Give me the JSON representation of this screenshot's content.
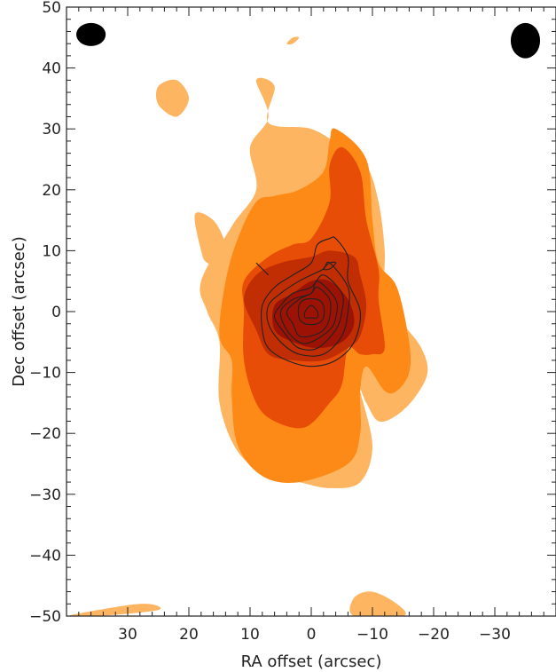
{
  "chart_data": {
    "type": "heatmap",
    "title": "",
    "xlabel": "RA offset (arcsec)",
    "ylabel": "Dec offset (arcsec)",
    "xlim": [
      40,
      -40
    ],
    "ylim": [
      -50,
      50
    ],
    "x_reversed": true,
    "x_ticks": [
      30,
      20,
      10,
      0,
      -10,
      -20,
      -30
    ],
    "x_tick_labels": [
      "30",
      "20",
      "10",
      "0",
      "−10",
      "−20",
      "−30"
    ],
    "y_ticks": [
      -50,
      -40,
      -30,
      -20,
      -10,
      0,
      10,
      20,
      30,
      40,
      50
    ],
    "y_tick_labels": [
      "−50",
      "−40",
      "−30",
      "−20",
      "−10",
      "0",
      "10",
      "20",
      "30",
      "40",
      "50"
    ],
    "grid": false,
    "filled_contour_levels": [
      {
        "level": 1,
        "color": "#fdb562",
        "regions": [
          [
            [
              9,
              38
            ],
            [
              6,
              37
            ],
            [
              7,
              31
            ],
            [
              0,
              30
            ],
            [
              -5,
              27
            ],
            [
              -9,
              24
            ],
            [
              -11,
              18
            ],
            [
              -12,
              10
            ],
            [
              -12,
              2
            ],
            [
              -15,
              -2
            ],
            [
              -18,
              -6
            ],
            [
              -19,
              -10
            ],
            [
              -17,
              -14
            ],
            [
              -14,
              -17
            ],
            [
              -11,
              -18
            ],
            [
              -9,
              -15
            ],
            [
              -8,
              -13
            ],
            [
              -10,
              -22
            ],
            [
              -8,
              -28
            ],
            [
              -3,
              -29
            ],
            [
              2,
              -28
            ],
            [
              7,
              -27
            ],
            [
              12,
              -23
            ],
            [
              15,
              -15
            ],
            [
              15,
              -5
            ],
            [
              17,
              0
            ],
            [
              18,
              5
            ],
            [
              13,
              14
            ],
            [
              9,
              20
            ],
            [
              10,
              27
            ],
            [
              7,
              32
            ]
          ],
          [
            [
              22,
              38
            ],
            [
              25,
              37
            ],
            [
              25,
              34
            ],
            [
              22,
              32
            ],
            [
              20,
              35
            ]
          ],
          [
            [
              16,
              15
            ],
            [
              19,
              16
            ],
            [
              18,
              10
            ],
            [
              17,
              8
            ],
            [
              14,
              7
            ],
            [
              14,
              11
            ]
          ],
          [
            [
              3,
              45
            ],
            [
              4,
              44
            ],
            [
              3,
              44
            ],
            [
              2,
              45
            ]
          ],
          [
            [
              40,
              -50
            ],
            [
              28,
              -48
            ],
            [
              25,
              -49
            ],
            [
              35,
              -50
            ]
          ],
          [
            [
              -7,
              -47
            ],
            [
              -10,
              -46
            ],
            [
              -14,
              -48
            ],
            [
              -15,
              -50
            ],
            [
              -7,
              -50
            ]
          ]
        ]
      },
      {
        "level": 2,
        "color": "#fd8a17",
        "regions": [
          [
            [
              -4,
              30
            ],
            [
              -9,
              25
            ],
            [
              -10,
              15
            ],
            [
              -11,
              8
            ],
            [
              -14,
              4
            ],
            [
              -16,
              -5
            ],
            [
              -16,
              -10
            ],
            [
              -14,
              -13
            ],
            [
              -12,
              -13
            ],
            [
              -9,
              -9
            ],
            [
              -8,
              -13
            ],
            [
              -8,
              -20
            ],
            [
              -6,
              -25
            ],
            [
              2,
              -28
            ],
            [
              8,
              -27
            ],
            [
              12,
              -22
            ],
            [
              13,
              -14
            ],
            [
              13,
              -8
            ],
            [
              15,
              -4
            ],
            [
              14,
              5
            ],
            [
              12,
              12
            ],
            [
              9,
              18
            ],
            [
              6,
              19
            ],
            [
              2,
              20
            ],
            [
              -2,
              23
            ],
            [
              -3,
              28
            ]
          ]
        ]
      },
      {
        "level": 3,
        "color": "#e84d08",
        "regions": [
          [
            [
              -5,
              27
            ],
            [
              -8,
              23
            ],
            [
              -9,
              15
            ],
            [
              -11,
              7
            ],
            [
              -11,
              2
            ],
            [
              -12,
              -6
            ],
            [
              -10,
              -7
            ],
            [
              -8,
              -7
            ],
            [
              -6,
              -6
            ],
            [
              -5,
              -12
            ],
            [
              -3,
              -15
            ],
            [
              1,
              -19
            ],
            [
              6,
              -18
            ],
            [
              9,
              -15
            ],
            [
              11,
              -8
            ],
            [
              11,
              0
            ],
            [
              11,
              5
            ],
            [
              7,
              9
            ],
            [
              3,
              11
            ],
            [
              0,
              12
            ],
            [
              -3,
              18
            ],
            [
              -3,
              24
            ]
          ]
        ]
      },
      {
        "level": 4,
        "color": "#c12e03",
        "regions": [
          [
            [
              -3,
              10
            ],
            [
              -7,
              9
            ],
            [
              -8,
              6
            ],
            [
              -9,
              1
            ],
            [
              -8,
              -4
            ],
            [
              -6,
              -6
            ],
            [
              -2,
              -8
            ],
            [
              3,
              -8
            ],
            [
              7,
              -7
            ],
            [
              9,
              -3
            ],
            [
              11,
              2
            ],
            [
              9,
              6
            ],
            [
              5,
              8
            ],
            [
              0,
              9
            ]
          ]
        ]
      },
      {
        "level": 5,
        "color": "#9c1204",
        "regions": [
          [
            [
              -3,
              5
            ],
            [
              -6,
              2
            ],
            [
              -7,
              -2
            ],
            [
              -5,
              -5
            ],
            [
              -1,
              -6
            ],
            [
              3,
              -5
            ],
            [
              6,
              -3
            ],
            [
              6,
              1
            ],
            [
              3,
              3
            ],
            [
              0,
              5
            ]
          ]
        ]
      }
    ],
    "line_contours": {
      "color": "#222222",
      "paths": [
        [
          [
            -4,
            12
          ],
          [
            -6,
            9
          ],
          [
            -6,
            5
          ],
          [
            -8,
            0
          ],
          [
            -7,
            -5
          ],
          [
            -4,
            -8
          ],
          [
            0,
            -9
          ],
          [
            4,
            -8
          ],
          [
            7,
            -6
          ],
          [
            8,
            -3
          ],
          [
            8,
            1
          ],
          [
            6,
            4
          ],
          [
            3,
            6
          ],
          [
            0,
            8
          ],
          [
            -1,
            11
          ],
          [
            -3,
            12
          ]
        ],
        [
          [
            -3,
            8
          ],
          [
            -6,
            4
          ],
          [
            -6,
            0
          ],
          [
            -5,
            -4
          ],
          [
            -2,
            -7
          ],
          [
            2,
            -7
          ],
          [
            5,
            -5
          ],
          [
            7,
            -2
          ],
          [
            7,
            1
          ],
          [
            5,
            3
          ],
          [
            2,
            5
          ],
          [
            0,
            6
          ],
          [
            -2,
            7
          ]
        ],
        [
          [
            -2,
            6
          ],
          [
            -5,
            3
          ],
          [
            -5,
            0
          ],
          [
            -4,
            -3
          ],
          [
            -1,
            -6
          ],
          [
            2,
            -6
          ],
          [
            4,
            -4
          ],
          [
            6,
            -1
          ],
          [
            5,
            1
          ],
          [
            3,
            3
          ],
          [
            0,
            4
          ]
        ],
        [
          [
            -1,
            5
          ],
          [
            -4,
            2
          ],
          [
            -4,
            -1
          ],
          [
            -3,
            -3
          ],
          [
            0,
            -5
          ],
          [
            2,
            -5
          ],
          [
            4,
            -3
          ],
          [
            5,
            0
          ],
          [
            3,
            2
          ],
          [
            0,
            3
          ]
        ],
        [
          [
            -1,
            4
          ],
          [
            -3,
            2
          ],
          [
            -3,
            -1
          ],
          [
            -2,
            -3
          ],
          [
            0,
            -4
          ],
          [
            2,
            -4
          ],
          [
            3,
            -2
          ],
          [
            4,
            0
          ],
          [
            2,
            2
          ],
          [
            0,
            3
          ]
        ],
        [
          [
            -1,
            2
          ],
          [
            -2,
            1
          ],
          [
            -2,
            -1
          ],
          [
            -1,
            -2
          ],
          [
            1,
            -2
          ],
          [
            2,
            -1
          ],
          [
            2,
            1
          ],
          [
            1,
            2
          ]
        ],
        [
          [
            0,
            1
          ],
          [
            -1,
            0
          ],
          [
            -1,
            -1
          ],
          [
            0,
            -1
          ],
          [
            1,
            -1
          ],
          [
            1,
            0
          ]
        ],
        [
          [
            8,
            7
          ],
          [
            9,
            8
          ],
          [
            8,
            7
          ],
          [
            7,
            6
          ]
        ],
        [
          [
            -3,
            7
          ],
          [
            -4,
            8
          ],
          [
            -3,
            8
          ],
          [
            -2,
            7
          ]
        ]
      ]
    },
    "beams": [
      {
        "x": 36,
        "y": 45.5,
        "rx": 2.4,
        "ry": 1.9
      },
      {
        "x": -35,
        "y": 44.5,
        "rx": 2.4,
        "ry": 2.9
      }
    ]
  }
}
